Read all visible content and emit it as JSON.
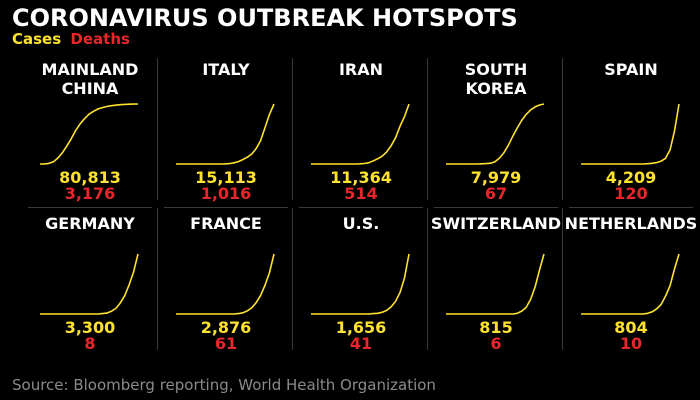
{
  "title": "CORONAVIRUS OUTBREAK HOTSPOTS",
  "legend": {
    "cases": "Cases",
    "deaths": "Deaths"
  },
  "source": "Source: Bloomberg reporting, World Health Organization",
  "colors": {
    "cases": "#ffe22e",
    "deaths": "#e8262b",
    "background": "#000000",
    "divider": "#3a3a3a"
  },
  "chart_data": {
    "type": "line",
    "series_kind": "cumulative cases (sparkline per country)",
    "panels": [
      {
        "country": [
          "MAINLAND",
          "CHINA"
        ],
        "cases": "80,813",
        "deaths": "3,176",
        "values": [
          0,
          0.2,
          0.8,
          3,
          8,
          15,
          24,
          34,
          45,
          54,
          61,
          67,
          71,
          74,
          76,
          77.5,
          78.5,
          79.2,
          79.8,
          80.2,
          80.5,
          80.7,
          80.8
        ]
      },
      {
        "country": [
          "ITALY"
        ],
        "cases": "15,113",
        "deaths": "1,016",
        "values": [
          0,
          0,
          0,
          0,
          0,
          0,
          0,
          0,
          0,
          0,
          0,
          0.02,
          0.1,
          0.3,
          0.6,
          1.1,
          1.7,
          2.5,
          3.9,
          5.9,
          9.2,
          12.5,
          15.1
        ]
      },
      {
        "country": [
          "IRAN"
        ],
        "cases": "11,364",
        "deaths": "514",
        "values": [
          0,
          0,
          0,
          0,
          0,
          0,
          0,
          0,
          0,
          0,
          0,
          0.03,
          0.1,
          0.25,
          0.6,
          1.0,
          1.5,
          2.3,
          3.5,
          5.0,
          7.2,
          9.0,
          11.4
        ]
      },
      {
        "country": [
          "SOUTH",
          "KOREA"
        ],
        "cases": "7,979",
        "deaths": "67",
        "values": [
          0,
          0,
          0,
          0,
          0,
          0,
          0,
          0,
          0.02,
          0.05,
          0.1,
          0.3,
          0.8,
          1.5,
          2.5,
          3.7,
          4.8,
          5.8,
          6.6,
          7.2,
          7.6,
          7.85,
          7.98
        ]
      },
      {
        "country": [
          "SPAIN"
        ],
        "cases": "4,209",
        "deaths": "120",
        "values": [
          0,
          0,
          0,
          0,
          0,
          0,
          0,
          0,
          0,
          0,
          0,
          0,
          0,
          0,
          0,
          0.02,
          0.05,
          0.1,
          0.2,
          0.4,
          1.0,
          2.3,
          4.2
        ]
      },
      {
        "country": [
          "GERMANY"
        ],
        "cases": "3,300",
        "deaths": "8",
        "values": [
          0,
          0,
          0,
          0,
          0,
          0,
          0,
          0,
          0,
          0,
          0,
          0,
          0,
          0,
          0.02,
          0.05,
          0.15,
          0.3,
          0.6,
          1.0,
          1.6,
          2.3,
          3.3
        ]
      },
      {
        "country": [
          "FRANCE"
        ],
        "cases": "2,876",
        "deaths": "61",
        "values": [
          0,
          0,
          0,
          0,
          0,
          0,
          0,
          0,
          0,
          0,
          0,
          0,
          0,
          0,
          0.02,
          0.06,
          0.15,
          0.3,
          0.55,
          0.9,
          1.4,
          2.0,
          2.9
        ]
      },
      {
        "country": [
          "U.S."
        ],
        "cases": "1,656",
        "deaths": "41",
        "values": [
          0,
          0,
          0,
          0,
          0,
          0,
          0,
          0,
          0,
          0,
          0,
          0,
          0,
          0,
          0.01,
          0.02,
          0.05,
          0.1,
          0.2,
          0.35,
          0.6,
          1.0,
          1.66
        ]
      },
      {
        "country": [
          "SWITZERLAND"
        ],
        "cases": "815",
        "deaths": "6",
        "values": [
          0,
          0,
          0,
          0,
          0,
          0,
          0,
          0,
          0,
          0,
          0,
          0,
          0,
          0,
          0,
          0,
          0.01,
          0.04,
          0.09,
          0.2,
          0.37,
          0.6,
          0.82
        ]
      },
      {
        "country": [
          "NETHERLANDS"
        ],
        "cases": "804",
        "deaths": "10",
        "values": [
          0,
          0,
          0,
          0,
          0,
          0,
          0,
          0,
          0,
          0,
          0,
          0,
          0,
          0,
          0,
          0.01,
          0.03,
          0.07,
          0.13,
          0.24,
          0.38,
          0.6,
          0.8
        ]
      }
    ]
  }
}
